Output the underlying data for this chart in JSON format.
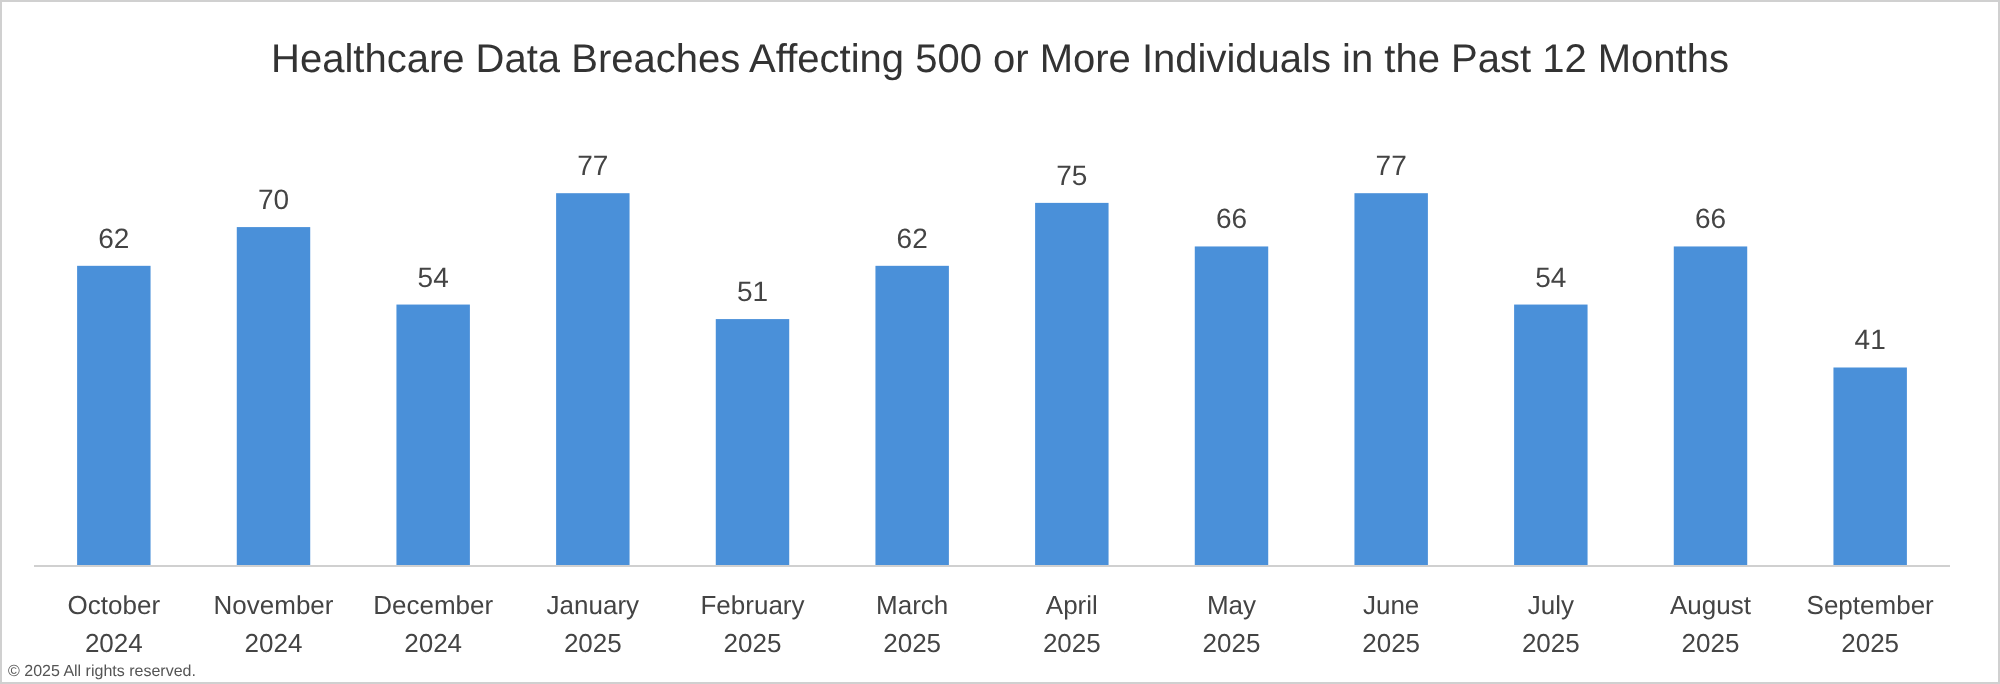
{
  "chart_data": {
    "type": "bar",
    "title": "Healthcare Data Breaches Affecting 500 or More Individuals in the Past 12 Months",
    "categories": [
      "October 2024",
      "November 2024",
      "December 2024",
      "January 2025",
      "February 2025",
      "March 2025",
      "April 2025",
      "May 2025",
      "June 2025",
      "July 2025",
      "August 2025",
      "September 2025"
    ],
    "values": [
      62,
      70,
      54,
      77,
      51,
      62,
      75,
      66,
      77,
      54,
      66,
      41
    ],
    "color": "#4a90d9",
    "data_labels": true,
    "annotations": [
      "© 2025 All rights reserved."
    ]
  }
}
